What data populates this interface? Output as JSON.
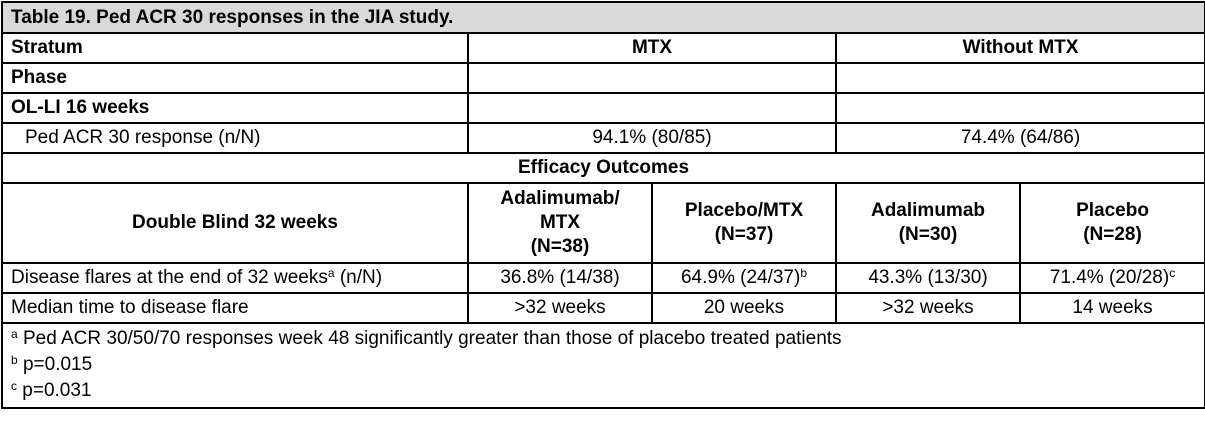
{
  "caption": "Table 19. Ped ACR 30 responses in the JIA study.",
  "stratum": {
    "label": "Stratum",
    "mtx": "MTX",
    "without_mtx": "Without MTX"
  },
  "phase_label": "Phase",
  "olli_label": "OL-LI 16 weeks",
  "ped_acr": {
    "label": "Ped ACR 30 response (n/N)",
    "mtx": "94.1% (80/85)",
    "without_mtx": "74.4% (64/86)"
  },
  "efficacy_label": "Efficacy Outcomes",
  "double_blind": {
    "label": "Double Blind 32 weeks",
    "columns": [
      {
        "line1": "Adalimumab/",
        "line2": "MTX",
        "line3": "(N=38)"
      },
      {
        "line1": "Placebo/MTX",
        "line2": "(N=37)"
      },
      {
        "line1": "Adalimumab",
        "line2": "(N=30)"
      },
      {
        "line1": "Placebo",
        "line2": "(N=28)"
      }
    ]
  },
  "disease_flares": {
    "label_pre": "Disease flares at the end of 32 weeks",
    "label_sup": "a",
    "label_post": " (n/N)",
    "values": [
      {
        "text": "36.8% (14/38)",
        "sup": ""
      },
      {
        "text": "64.9% (24/37)",
        "sup": "b"
      },
      {
        "text": "43.3% (13/30)",
        "sup": ""
      },
      {
        "text": "71.4% (20/28)",
        "sup": "c"
      }
    ]
  },
  "median_time": {
    "label": "Median time to disease flare",
    "values": [
      ">32 weeks",
      "20 weeks",
      ">32 weeks",
      "14 weeks"
    ]
  },
  "footnotes": [
    {
      "mark": "a",
      "text": " Ped ACR 30/50/70 responses week 48 significantly greater than those of placebo treated patients"
    },
    {
      "mark": "b",
      "text": " p=0.015"
    },
    {
      "mark": "c",
      "text": " p=0.031"
    }
  ]
}
